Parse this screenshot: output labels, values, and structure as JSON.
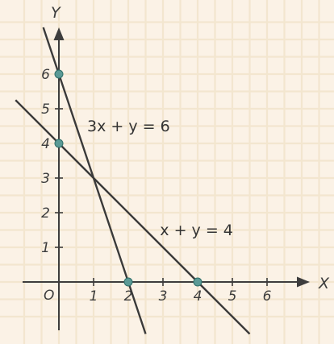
{
  "chart_data": {
    "type": "line",
    "xlabel": "X",
    "ylabel": "Y",
    "origin_label": "O",
    "xlim": [
      -1.05,
      7.5
    ],
    "ylim": [
      -1.4,
      7.7
    ],
    "x_ticks": [
      1,
      2,
      3,
      4,
      5,
      6
    ],
    "y_ticks": [
      1,
      2,
      3,
      4,
      5,
      6
    ],
    "grid": true,
    "series": [
      {
        "equation": "3x + y = 6",
        "label_text": "3x + y = 6",
        "label_anchor": [
          1.0,
          4.35
        ],
        "x": [
          -0.45,
          2.5
        ],
        "y": [
          7.35,
          -1.5
        ],
        "color": "#3a3a3a"
      },
      {
        "equation": "x + y = 4",
        "label_text": "x + y = 4",
        "label_anchor": [
          3.1,
          1.35
        ],
        "x": [
          -1.25,
          5.5
        ],
        "y": [
          5.25,
          -1.5
        ],
        "color": "#3a3a3a"
      }
    ],
    "points": [
      {
        "x": 0,
        "y": 6
      },
      {
        "x": 0,
        "y": 4
      },
      {
        "x": 2,
        "y": 0
      },
      {
        "x": 4,
        "y": 0
      }
    ],
    "colors": {
      "background": "#fbf2e6",
      "grid": "#f3e6cf",
      "point": "#5b9a96"
    }
  }
}
